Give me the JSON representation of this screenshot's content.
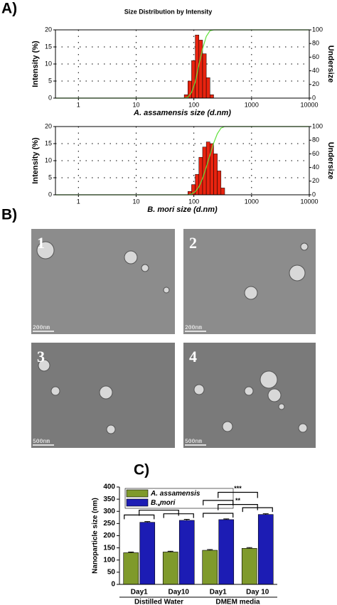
{
  "panel_labels": [
    "A)",
    "B)",
    "C)"
  ],
  "tem_images": [
    {
      "label": "1",
      "scale": "200nm"
    },
    {
      "label": "2",
      "scale": "200nm"
    },
    {
      "label": "3",
      "scale": "500nm"
    },
    {
      "label": "4",
      "scale": "500nm"
    }
  ],
  "chart_data": [
    {
      "type": "histogram",
      "title": "Size Distribution by Intensity",
      "xlabel": "A. assamensis size (d.nm)",
      "ylabel": "Intensity (%)",
      "y2label": "Undersize",
      "bins": [
        68.1,
        78.8,
        91.3,
        105.7,
        122.4,
        141.8,
        164.2,
        190.1,
        220.2
      ],
      "values": [
        1,
        5,
        11,
        18.5,
        17,
        13,
        6,
        1
      ],
      "color": "#e8230f",
      "xscale": "log",
      "xlim": [
        0.4,
        10000
      ],
      "xticks": [
        1,
        10,
        100,
        1000,
        10000
      ],
      "ylim": [
        0,
        20
      ],
      "yticks": [
        0,
        5,
        10,
        15,
        20
      ],
      "y2lim": [
        0,
        100
      ],
      "y2ticks": [
        0,
        20,
        40,
        60,
        80,
        100
      ],
      "grid": true,
      "curve": {
        "axis": "y2",
        "color": "#5fe03a",
        "x": [
          0.4,
          68.1,
          78.8,
          91.3,
          105.7,
          122.4,
          141.8,
          164.2,
          190.1,
          220.2,
          10000
        ],
        "values": [
          0,
          0,
          1.4,
          8.3,
          23.4,
          48.9,
          72.4,
          90.3,
          98.6,
          100,
          100
        ]
      }
    },
    {
      "type": "histogram",
      "xlabel": "B. mori size (d.nm)",
      "ylabel": "Intensity (%)",
      "y2label": "Undersize",
      "bins": [
        78.8,
        91.3,
        105.7,
        122.4,
        141.8,
        164.2,
        190.1,
        220.2,
        255,
        295.3,
        342
      ],
      "values": [
        1,
        3,
        6,
        11,
        14,
        15.5,
        15,
        12,
        7,
        2
      ],
      "color": "#e8230f",
      "xscale": "log",
      "xlim": [
        0.4,
        10000
      ],
      "xticks": [
        1,
        10,
        100,
        1000,
        10000
      ],
      "ylim": [
        0,
        20
      ],
      "yticks": [
        0,
        5,
        10,
        15,
        20
      ],
      "y2lim": [
        0,
        100
      ],
      "y2ticks": [
        0,
        20,
        40,
        60,
        80,
        100
      ],
      "grid": true,
      "curve": {
        "axis": "y2",
        "color": "#5fe03a",
        "x": [
          0.4,
          78.8,
          91.3,
          105.7,
          122.4,
          141.8,
          164.2,
          190.1,
          220.2,
          255,
          295.3,
          342,
          10000
        ],
        "values": [
          0,
          0,
          1.2,
          4.6,
          11.6,
          24.3,
          40.5,
          58.4,
          75.7,
          89.6,
          97.7,
          100,
          100
        ]
      }
    },
    {
      "type": "bar",
      "ylabel": "Nanoparticle size (nm)",
      "categories": [
        "Day1",
        "Day10",
        "Day1",
        "Day 10"
      ],
      "groups": [
        "Distilled Water",
        "DMEM media"
      ],
      "series": [
        {
          "name": "A. assamensis",
          "color": "#7f9a2b",
          "values": [
            130,
            133,
            140,
            148
          ],
          "errors": [
            3,
            3,
            3,
            3
          ]
        },
        {
          "name": "B. mori",
          "color": "#1c1cb4",
          "values": [
            255,
            263,
            266,
            287
          ],
          "errors": [
            3,
            4,
            3,
            3
          ]
        }
      ],
      "ylim": [
        0,
        400
      ],
      "yticks": [
        0,
        50,
        100,
        150,
        200,
        250,
        300,
        350,
        400
      ],
      "annotations": [
        "*",
        "**",
        "***"
      ]
    }
  ]
}
